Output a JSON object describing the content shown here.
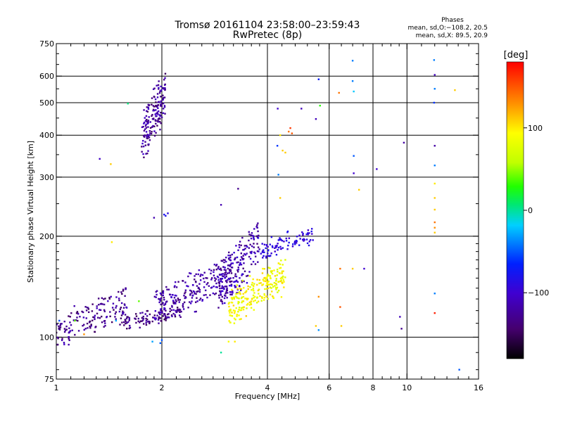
{
  "chart_data": {
    "type": "scatter",
    "title": "Tromsø 20161104 23:58:00–23:59:43",
    "subtitle": "RwPretec (8p)",
    "xlabel": "Frequency [MHz]",
    "ylabel": "Stationary phase Virtual Height [km]",
    "x_scale": "log",
    "y_scale": "log",
    "xlim": [
      1,
      16
    ],
    "ylim": [
      75,
      750
    ],
    "x_ticks": [
      1,
      2,
      4,
      6,
      8,
      10,
      16
    ],
    "x_tick_labels": [
      "1",
      "2",
      "4",
      "6",
      "8",
      "10",
      "16"
    ],
    "x_minor_ticks": [
      1.1,
      1.2,
      1.3,
      1.4,
      1.5,
      1.6,
      1.7,
      1.8,
      1.9,
      2.2,
      2.4,
      2.6,
      2.8,
      3,
      3.2,
      3.4,
      3.6,
      3.8,
      4.4,
      4.8,
      5.2,
      5.6,
      6.5,
      7,
      7.5,
      8.5,
      9,
      9.5,
      11,
      12,
      13,
      14,
      15
    ],
    "x_grid": [
      2,
      4,
      6,
      8,
      10
    ],
    "y_ticks": [
      75,
      100,
      200,
      300,
      400,
      500,
      600,
      750
    ],
    "y_tick_labels": [
      "75",
      "100",
      "200",
      "300",
      "400",
      "500",
      "600",
      "750"
    ],
    "y_minor_ticks": [
      80,
      90,
      110,
      120,
      130,
      140,
      150,
      160,
      170,
      180,
      190,
      250,
      350,
      450,
      550,
      650,
      700
    ],
    "y_grid": [
      100,
      200,
      300,
      400,
      500,
      600
    ],
    "grid": true,
    "phase_title": "Phases",
    "phase_o": "mean, sd,O:−108.2, 20.5",
    "phase_x": "mean, sd,X:  89.5, 20.9",
    "colorbar": {
      "label": "[deg]",
      "range": [
        -180,
        180
      ],
      "ticks": [
        100,
        0,
        -100
      ],
      "tick_labels": [
        "100",
        "0",
        "−100"
      ],
      "colormap": "rainbow (black-purple-blue-cyan-green-yellow-red)"
    },
    "clusters": [
      {
        "x": [
          1.75,
          2.05
        ],
        "y": [
          340,
          610
        ],
        "phase": [
          -150,
          -100
        ],
        "n": 170
      },
      {
        "x": [
          1.0,
          1.6
        ],
        "y": [
          95,
          140
        ],
        "phase": [
          -150,
          -105
        ],
        "n": 160
      },
      {
        "x": [
          1.5,
          2.3
        ],
        "y": [
          105,
          125
        ],
        "phase": [
          -150,
          -115
        ],
        "n": 110
      },
      {
        "x": [
          1.9,
          3.2
        ],
        "y": [
          110,
          170
        ],
        "phase": [
          -140,
          -100
        ],
        "n": 240
      },
      {
        "x": [
          2.9,
          3.8
        ],
        "y": [
          120,
          220
        ],
        "phase": [
          -140,
          -90
        ],
        "n": 190
      },
      {
        "x": [
          3.8,
          5.4
        ],
        "y": [
          170,
          215
        ],
        "phase": [
          -105,
          -80
        ],
        "n": 90
      },
      {
        "x": [
          3.1,
          4.5
        ],
        "y": [
          110,
          170
        ],
        "phase": [
          70,
          110
        ],
        "n": 230
      }
    ],
    "points": [
      {
        "x": 1.02,
        "y": 112,
        "phase": -55
      },
      {
        "x": 1.13,
        "y": 112,
        "phase": 40
      },
      {
        "x": 1.2,
        "y": 102,
        "phase": 130
      },
      {
        "x": 1.33,
        "y": 340,
        "phase": -105
      },
      {
        "x": 1.43,
        "y": 328,
        "phase": 110
      },
      {
        "x": 1.44,
        "y": 192,
        "phase": 100
      },
      {
        "x": 1.48,
        "y": 112,
        "phase": -30
      },
      {
        "x": 1.6,
        "y": 497,
        "phase": 5
      },
      {
        "x": 1.72,
        "y": 128,
        "phase": 40
      },
      {
        "x": 1.88,
        "y": 97,
        "phase": -30
      },
      {
        "x": 1.98,
        "y": 96,
        "phase": -50
      },
      {
        "x": 2.0,
        "y": 98,
        "phase": -50
      },
      {
        "x": 2.03,
        "y": 232,
        "phase": -80
      },
      {
        "x": 2.05,
        "y": 230,
        "phase": -80
      },
      {
        "x": 2.08,
        "y": 234,
        "phase": -90
      },
      {
        "x": 1.9,
        "y": 227,
        "phase": -115
      },
      {
        "x": 2.95,
        "y": 90,
        "phase": 0
      },
      {
        "x": 3.1,
        "y": 97,
        "phase": 90
      },
      {
        "x": 3.23,
        "y": 97,
        "phase": 100
      },
      {
        "x": 2.95,
        "y": 248,
        "phase": -115
      },
      {
        "x": 3.3,
        "y": 277,
        "phase": -130
      },
      {
        "x": 4.28,
        "y": 480,
        "phase": -100
      },
      {
        "x": 4.27,
        "y": 372,
        "phase": -60
      },
      {
        "x": 4.35,
        "y": 400,
        "phase": 100
      },
      {
        "x": 4.42,
        "y": 360,
        "phase": 110
      },
      {
        "x": 4.5,
        "y": 355,
        "phase": 110
      },
      {
        "x": 4.3,
        "y": 305,
        "phase": -40
      },
      {
        "x": 4.35,
        "y": 260,
        "phase": 110
      },
      {
        "x": 4.6,
        "y": 410,
        "phase": 140
      },
      {
        "x": 4.65,
        "y": 420,
        "phase": 160
      },
      {
        "x": 4.7,
        "y": 405,
        "phase": 150
      },
      {
        "x": 5.0,
        "y": 480,
        "phase": -110
      },
      {
        "x": 5.5,
        "y": 447,
        "phase": -110
      },
      {
        "x": 5.6,
        "y": 587,
        "phase": -70
      },
      {
        "x": 5.65,
        "y": 490,
        "phase": 30
      },
      {
        "x": 5.6,
        "y": 132,
        "phase": 130
      },
      {
        "x": 5.5,
        "y": 108,
        "phase": 110
      },
      {
        "x": 5.6,
        "y": 105,
        "phase": -35
      },
      {
        "x": 6.4,
        "y": 535,
        "phase": 140
      },
      {
        "x": 6.45,
        "y": 160,
        "phase": 140
      },
      {
        "x": 6.45,
        "y": 123,
        "phase": 150
      },
      {
        "x": 6.5,
        "y": 108,
        "phase": 110
      },
      {
        "x": 7.0,
        "y": 667,
        "phase": -40
      },
      {
        "x": 7.0,
        "y": 580,
        "phase": -40
      },
      {
        "x": 7.05,
        "y": 540,
        "phase": -20
      },
      {
        "x": 7.05,
        "y": 347,
        "phase": -50
      },
      {
        "x": 7.05,
        "y": 308,
        "phase": -100
      },
      {
        "x": 7.0,
        "y": 160,
        "phase": 110
      },
      {
        "x": 7.3,
        "y": 275,
        "phase": 110
      },
      {
        "x": 7.55,
        "y": 160,
        "phase": -100
      },
      {
        "x": 8.2,
        "y": 317,
        "phase": -100
      },
      {
        "x": 9.55,
        "y": 115,
        "phase": -110
      },
      {
        "x": 9.65,
        "y": 106,
        "phase": -130
      },
      {
        "x": 9.8,
        "y": 380,
        "phase": -120
      },
      {
        "x": 11.95,
        "y": 670,
        "phase": -40
      },
      {
        "x": 12.0,
        "y": 605,
        "phase": -110
      },
      {
        "x": 12.0,
        "y": 550,
        "phase": -40
      },
      {
        "x": 11.95,
        "y": 500,
        "phase": -60
      },
      {
        "x": 12.0,
        "y": 372,
        "phase": -120
      },
      {
        "x": 12.0,
        "y": 325,
        "phase": -40
      },
      {
        "x": 12.0,
        "y": 287,
        "phase": 100
      },
      {
        "x": 12.0,
        "y": 260,
        "phase": 110
      },
      {
        "x": 12.0,
        "y": 240,
        "phase": 110
      },
      {
        "x": 12.0,
        "y": 220,
        "phase": 140
      },
      {
        "x": 12.0,
        "y": 212,
        "phase": 130
      },
      {
        "x": 12.0,
        "y": 205,
        "phase": 110
      },
      {
        "x": 12.0,
        "y": 135,
        "phase": -40
      },
      {
        "x": 12.0,
        "y": 118,
        "phase": 170
      },
      {
        "x": 13.7,
        "y": 545,
        "phase": 110
      },
      {
        "x": 14.1,
        "y": 80,
        "phase": -50
      }
    ]
  }
}
